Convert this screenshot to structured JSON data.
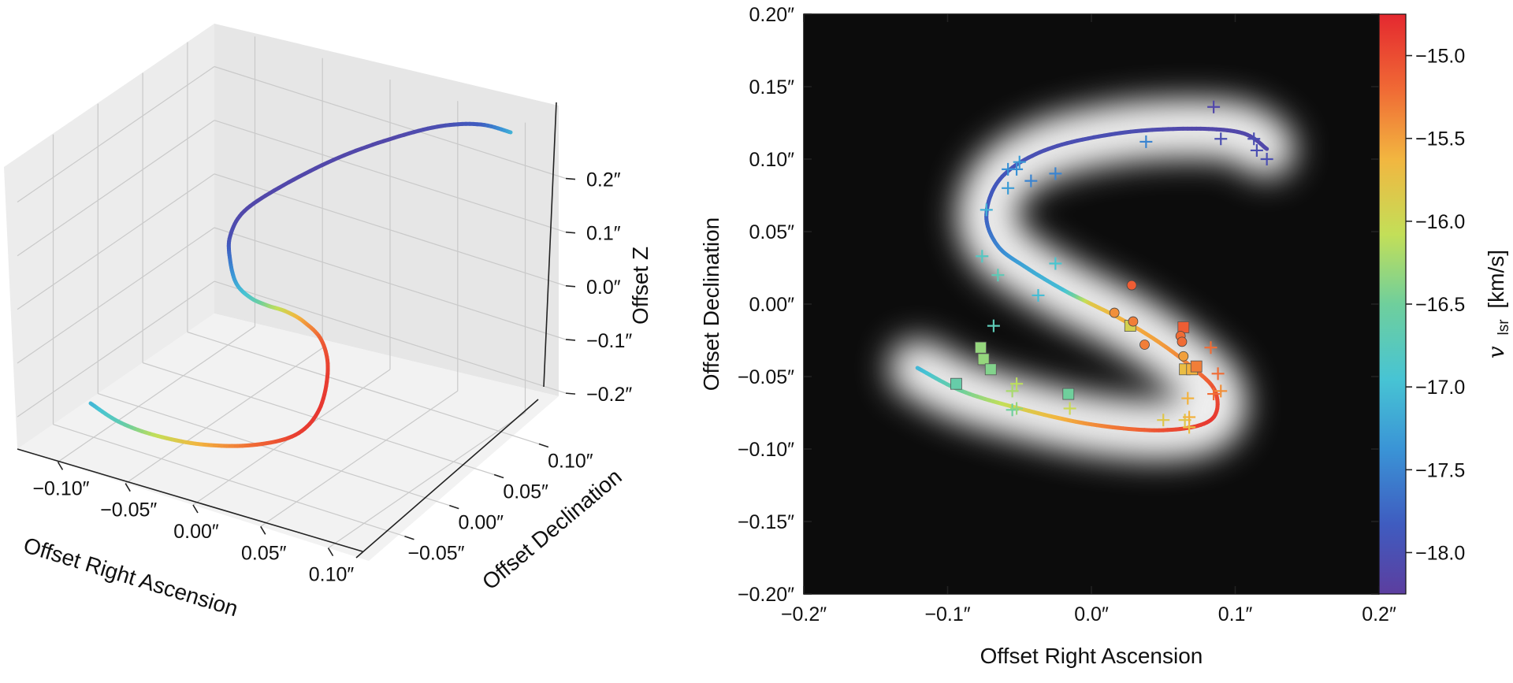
{
  "chart_data": [
    {
      "id": "left",
      "type": "line",
      "projection": "3d",
      "xlabel": "Offset Right Ascension",
      "ylabel": "Offset Declination",
      "zlabel": "Offset Z",
      "x_ticks": [
        -0.1,
        -0.05,
        0.0,
        0.05,
        0.1
      ],
      "x_tick_labels": [
        "−0.10″",
        "−0.05″",
        "0.00″",
        "0.05″",
        "0.10″"
      ],
      "y_ticks": [
        -0.05,
        0.0,
        0.05,
        0.1
      ],
      "y_tick_labels": [
        "−0.05″",
        "0.00″",
        "0.05″",
        "0.10″"
      ],
      "z_ticks": [
        -0.2,
        -0.1,
        0.0,
        0.1,
        0.2
      ],
      "z_tick_labels": [
        "−0.2″",
        "−0.1″",
        "0.0″",
        "0.1″",
        "0.2″"
      ],
      "xlim": [
        -0.13,
        0.13
      ],
      "ylim": [
        -0.09,
        0.13
      ],
      "zlim": [
        -0.26,
        0.28
      ],
      "curve_color_by": "vlsr",
      "curve_description": "S-shaped precessing jet trajectory colored by line-of-sight velocity"
    },
    {
      "id": "right",
      "type": "line",
      "xlabel": "Offset Right Ascension",
      "ylabel": "Offset Declination",
      "xlim": [
        -0.2,
        0.2
      ],
      "ylim": [
        -0.2,
        0.2
      ],
      "x_ticks": [
        -0.2,
        -0.1,
        0.0,
        0.1,
        0.2
      ],
      "x_tick_labels": [
        "−0.2″",
        "−0.1″",
        "0.0″",
        "0.1″",
        "0.2″"
      ],
      "y_ticks": [
        -0.2,
        -0.15,
        -0.1,
        -0.05,
        0.0,
        0.05,
        0.1,
        0.15,
        0.2
      ],
      "y_tick_labels": [
        "−0.20″",
        "−0.15″",
        "−0.10″",
        "−0.05″",
        "0.00″",
        "0.05″",
        "0.10″",
        "0.15″",
        "0.20″"
      ],
      "background": "black with blurred white S-shaped emission",
      "curve_description": "S-shaped model curve colored by vlsr",
      "colorbar": {
        "label": "v",
        "label_sub": "lsr",
        "label_unit": "[km/s]",
        "range": [
          -18.25,
          -14.75
        ],
        "ticks": [
          -15.0,
          -15.5,
          -16.0,
          -16.5,
          -17.0,
          -17.5,
          -18.0
        ],
        "tick_labels": [
          "−15.0",
          "−15.5",
          "−16.0",
          "−16.5",
          "−17.0",
          "−17.5",
          "−18.0"
        ],
        "colormap": [
          "#5c3e9f",
          "#3f5cc0",
          "#3a94d6",
          "#47c4d4",
          "#6fcf9c",
          "#c3df58",
          "#f2b640",
          "#f06a35",
          "#e4282f"
        ]
      },
      "markers_plus": [
        [
          0.085,
          0.136,
          -18.1
        ],
        [
          0.09,
          0.114,
          -18.0
        ],
        [
          0.113,
          0.114,
          -18.0
        ],
        [
          0.115,
          0.106,
          -18.0
        ],
        [
          0.122,
          0.1,
          -18.0
        ],
        [
          0.038,
          0.112,
          -17.5
        ],
        [
          -0.058,
          0.093,
          -17.4
        ],
        [
          -0.05,
          0.098,
          -17.3
        ],
        [
          -0.052,
          0.093,
          -17.4
        ],
        [
          -0.042,
          0.085,
          -17.5
        ],
        [
          -0.025,
          0.09,
          -17.5
        ],
        [
          -0.058,
          0.08,
          -17.3
        ],
        [
          -0.073,
          0.065,
          -17.1
        ],
        [
          -0.076,
          0.033,
          -16.8
        ],
        [
          -0.065,
          0.02,
          -16.7
        ],
        [
          -0.025,
          0.028,
          -16.9
        ],
        [
          -0.037,
          0.006,
          -17.0
        ],
        [
          -0.068,
          -0.015,
          -16.7
        ],
        [
          -0.052,
          -0.055,
          -16.1
        ],
        [
          -0.055,
          -0.06,
          -16.2
        ],
        [
          -0.055,
          -0.073,
          -16.5
        ],
        [
          -0.052,
          -0.072,
          -16.3
        ],
        [
          -0.015,
          -0.072,
          -16.0
        ],
        [
          0.05,
          -0.08,
          -15.8
        ],
        [
          0.065,
          -0.08,
          -15.8
        ],
        [
          0.067,
          -0.065,
          -15.6
        ],
        [
          0.068,
          -0.085,
          -15.7
        ],
        [
          0.068,
          -0.078,
          -15.6
        ],
        [
          0.083,
          -0.03,
          -15.2
        ],
        [
          0.088,
          -0.048,
          -15.2
        ],
        [
          0.09,
          -0.06,
          -15.4
        ],
        [
          0.085,
          -0.062,
          -15.2
        ]
      ],
      "markers_square": [
        [
          -0.094,
          -0.055,
          -16.6
        ],
        [
          -0.077,
          -0.03,
          -16.3
        ],
        [
          -0.075,
          -0.038,
          -16.3
        ],
        [
          -0.07,
          -0.045,
          -16.4
        ],
        [
          -0.016,
          -0.062,
          -16.5
        ],
        [
          0.027,
          -0.015,
          -15.9
        ],
        [
          0.064,
          -0.016,
          -15.1
        ],
        [
          0.065,
          -0.045,
          -15.7
        ],
        [
          0.07,
          -0.045,
          -15.6
        ],
        [
          0.073,
          -0.043,
          -15.3
        ]
      ],
      "markers_circle": [
        [
          0.028,
          0.013,
          -15.1
        ],
        [
          0.016,
          -0.006,
          -15.4
        ],
        [
          0.029,
          -0.012,
          -15.3
        ],
        [
          0.037,
          -0.028,
          -15.3
        ],
        [
          0.062,
          -0.022,
          -15.2
        ],
        [
          0.063,
          -0.026,
          -15.2
        ],
        [
          0.064,
          -0.036,
          -15.5
        ]
      ]
    }
  ]
}
